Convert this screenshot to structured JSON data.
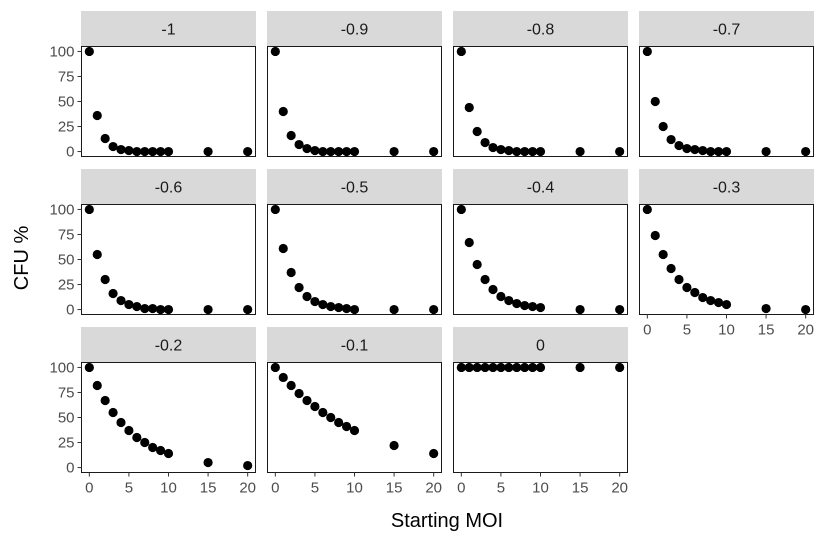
{
  "chart_data": {
    "type": "scatter",
    "layout": "faceted grid, 4 columns, shared axes",
    "xlabel": "Starting MOI",
    "ylabel": "CFU %",
    "xlim": [
      0,
      20
    ],
    "ylim": [
      0,
      100
    ],
    "x_ticks": [
      0,
      5,
      10,
      15,
      20
    ],
    "y_ticks": [
      0,
      25,
      50,
      75,
      100
    ],
    "grid": false,
    "point_color": "#000000",
    "strip_color": "#d9d9d9",
    "facets": [
      {
        "label": "-1",
        "x": [
          0,
          1,
          2,
          3,
          4,
          5,
          6,
          7,
          8,
          9,
          10,
          15,
          20
        ],
        "y": [
          100,
          36,
          13,
          5,
          2,
          1,
          0,
          0,
          0,
          0,
          0,
          0,
          0
        ]
      },
      {
        "label": "-0.9",
        "x": [
          0,
          1,
          2,
          3,
          4,
          5,
          6,
          7,
          8,
          9,
          10,
          15,
          20
        ],
        "y": [
          100,
          40,
          16,
          7,
          3,
          1,
          0,
          0,
          0,
          0,
          0,
          0,
          0
        ]
      },
      {
        "label": "-0.8",
        "x": [
          0,
          1,
          2,
          3,
          4,
          5,
          6,
          7,
          8,
          9,
          10,
          15,
          20
        ],
        "y": [
          100,
          44,
          20,
          9,
          4,
          2,
          1,
          0,
          0,
          0,
          0,
          0,
          0
        ]
      },
      {
        "label": "-0.7",
        "x": [
          0,
          1,
          2,
          3,
          4,
          5,
          6,
          7,
          8,
          9,
          10,
          15,
          20
        ],
        "y": [
          100,
          50,
          25,
          12,
          6,
          3,
          2,
          1,
          0,
          0,
          0,
          0,
          0
        ]
      },
      {
        "label": "-0.6",
        "x": [
          0,
          1,
          2,
          3,
          4,
          5,
          6,
          7,
          8,
          9,
          10,
          15,
          20
        ],
        "y": [
          100,
          55,
          30,
          16,
          9,
          5,
          3,
          1,
          1,
          0,
          0,
          0,
          0
        ]
      },
      {
        "label": "-0.5",
        "x": [
          0,
          1,
          2,
          3,
          4,
          5,
          6,
          7,
          8,
          9,
          10,
          15,
          20
        ],
        "y": [
          100,
          61,
          37,
          22,
          13,
          8,
          5,
          3,
          2,
          1,
          0,
          0,
          0
        ]
      },
      {
        "label": "-0.4",
        "x": [
          0,
          1,
          2,
          3,
          4,
          5,
          6,
          7,
          8,
          9,
          10,
          15,
          20
        ],
        "y": [
          100,
          67,
          45,
          30,
          20,
          13,
          9,
          6,
          4,
          3,
          2,
          0,
          0
        ]
      },
      {
        "label": "-0.3",
        "x": [
          0,
          1,
          2,
          3,
          4,
          5,
          6,
          7,
          8,
          9,
          10,
          15,
          20
        ],
        "y": [
          100,
          74,
          55,
          41,
          30,
          22,
          17,
          12,
          9,
          7,
          5,
          1,
          0
        ]
      },
      {
        "label": "-0.2",
        "x": [
          0,
          1,
          2,
          3,
          4,
          5,
          6,
          7,
          8,
          9,
          10,
          15,
          20
        ],
        "y": [
          100,
          82,
          67,
          55,
          45,
          37,
          30,
          25,
          20,
          17,
          14,
          5,
          2
        ]
      },
      {
        "label": "-0.1",
        "x": [
          0,
          1,
          2,
          3,
          4,
          5,
          6,
          7,
          8,
          9,
          10,
          15,
          20
        ],
        "y": [
          100,
          90,
          82,
          74,
          67,
          61,
          55,
          50,
          45,
          41,
          37,
          22,
          14
        ]
      },
      {
        "label": "0",
        "x": [
          0,
          1,
          2,
          3,
          4,
          5,
          6,
          7,
          8,
          9,
          10,
          15,
          20
        ],
        "y": [
          100,
          100,
          100,
          100,
          100,
          100,
          100,
          100,
          100,
          100,
          100,
          100,
          100
        ]
      }
    ]
  }
}
